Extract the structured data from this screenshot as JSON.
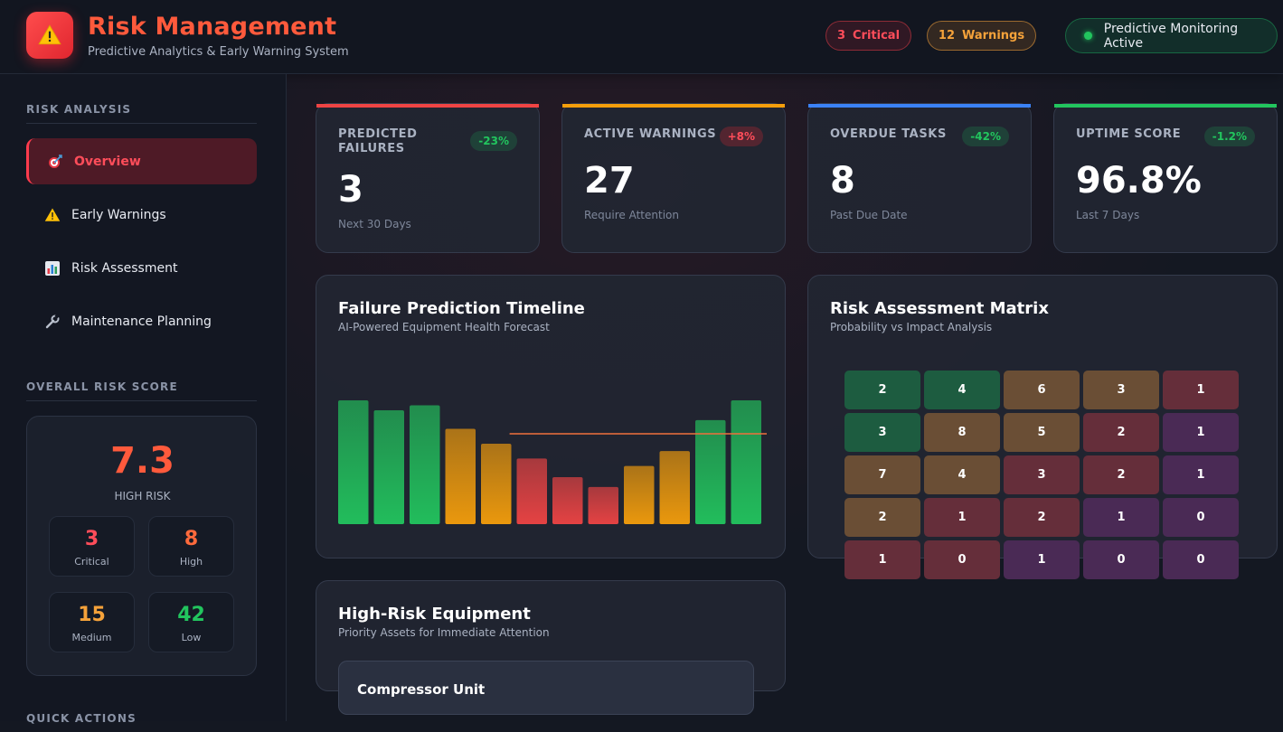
{
  "header": {
    "title": "Risk Management",
    "subtitle": "Predictive Analytics & Early Warning System",
    "critical_count": "3",
    "critical_label": "Critical",
    "warning_count": "12",
    "warning_label": "Warnings",
    "monitor_label": "Predictive Monitoring Active"
  },
  "sidebar": {
    "section_analysis": "RISK ANALYSIS",
    "items": [
      {
        "label": "Overview",
        "icon": "target-icon"
      },
      {
        "label": "Early Warnings",
        "icon": "warning-icon"
      },
      {
        "label": "Risk Assessment",
        "icon": "bar-chart-icon"
      },
      {
        "label": "Maintenance Planning",
        "icon": "wrench-icon"
      }
    ],
    "section_score": "OVERALL RISK SCORE",
    "score": "7.3",
    "score_label": "HIGH RISK",
    "breakdown": [
      {
        "value": "3",
        "label": "Critical",
        "color": "#ff4d5a"
      },
      {
        "value": "8",
        "label": "High",
        "color": "#ff6a3c"
      },
      {
        "value": "15",
        "label": "Medium",
        "color": "#f5a23a"
      },
      {
        "value": "42",
        "label": "Low",
        "color": "#22c55e"
      }
    ],
    "section_actions": "QUICK ACTIONS"
  },
  "kpis": [
    {
      "label": "PREDICTED FAILURES",
      "badge": "-23%",
      "value": "3",
      "sub": "Next 30 Days",
      "accent": "#ef4444"
    },
    {
      "label": "ACTIVE WARNINGS",
      "badge": "+8%",
      "value": "27",
      "sub": "Require Attention",
      "accent": "#f59e0b"
    },
    {
      "label": "OVERDUE TASKS",
      "badge": "-42%",
      "value": "8",
      "sub": "Past Due Date",
      "accent": "#3b82f6"
    },
    {
      "label": "UPTIME SCORE",
      "badge": "-1.2%",
      "value": "96.8%",
      "sub": "Last 7 Days",
      "accent": "#22c55e"
    }
  ],
  "timeline": {
    "title": "Failure Prediction Timeline",
    "subtitle": "AI-Powered Equipment Health Forecast"
  },
  "chart_data": {
    "type": "bar",
    "values": [
      100,
      92,
      96,
      77,
      65,
      53,
      38,
      30,
      47,
      59,
      84,
      100
    ],
    "status": [
      "good",
      "good",
      "good",
      "warn",
      "warn",
      "crit",
      "crit",
      "crit",
      "warn",
      "warn",
      "good",
      "good"
    ],
    "threshold": 73,
    "ylim": [
      0,
      100
    ],
    "colors": {
      "good": "#22c55e",
      "warn": "#f59e0b",
      "crit": "#ef4444"
    }
  },
  "matrix": {
    "title": "Risk Assessment Matrix",
    "subtitle": "Probability vs Impact Analysis",
    "rows": [
      [
        "2",
        "4",
        "6",
        "3",
        "1"
      ],
      [
        "3",
        "8",
        "5",
        "2",
        "1"
      ],
      [
        "7",
        "4",
        "3",
        "2",
        "1"
      ],
      [
        "2",
        "1",
        "2",
        "1",
        "0"
      ],
      [
        "1",
        "0",
        "1",
        "0",
        "0"
      ]
    ],
    "levels": [
      [
        "low",
        "low",
        "med",
        "med",
        "high"
      ],
      [
        "low",
        "med",
        "med",
        "high",
        "crit"
      ],
      [
        "med",
        "med",
        "high",
        "high",
        "crit"
      ],
      [
        "med",
        "high",
        "high",
        "crit",
        "crit"
      ],
      [
        "high",
        "high",
        "crit",
        "crit",
        "crit"
      ]
    ],
    "colors": {
      "low": "#1d5c40",
      "med": "#6a4e35",
      "high": "#652e3a",
      "crit": "#4a2a55"
    }
  },
  "equipment": {
    "title": "High-Risk Equipment",
    "subtitle": "Priority Assets for Immediate Attention",
    "first_item": "Compressor Unit"
  }
}
